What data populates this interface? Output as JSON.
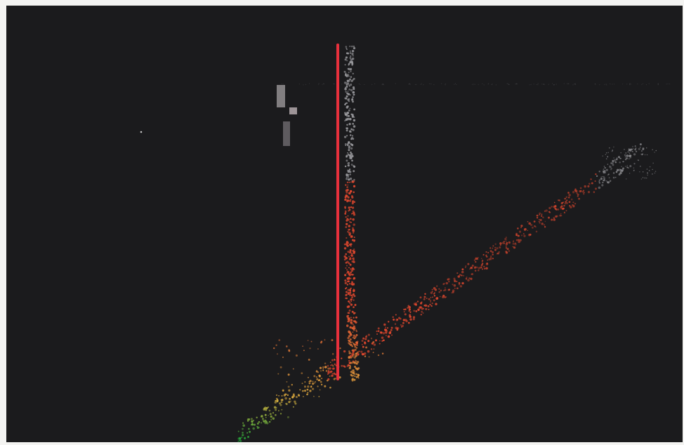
{
  "scene": {
    "kind": "point-cloud-viewer",
    "background_color": "#1b1b1d",
    "frame_color": "#f4f4f2",
    "measurement_line": {
      "color": "#e8303c"
    },
    "point_colors": {
      "low": "#3fa83a",
      "mid": "#e0b040",
      "high": "#e2482e",
      "top": "#9a9a9e"
    }
  }
}
